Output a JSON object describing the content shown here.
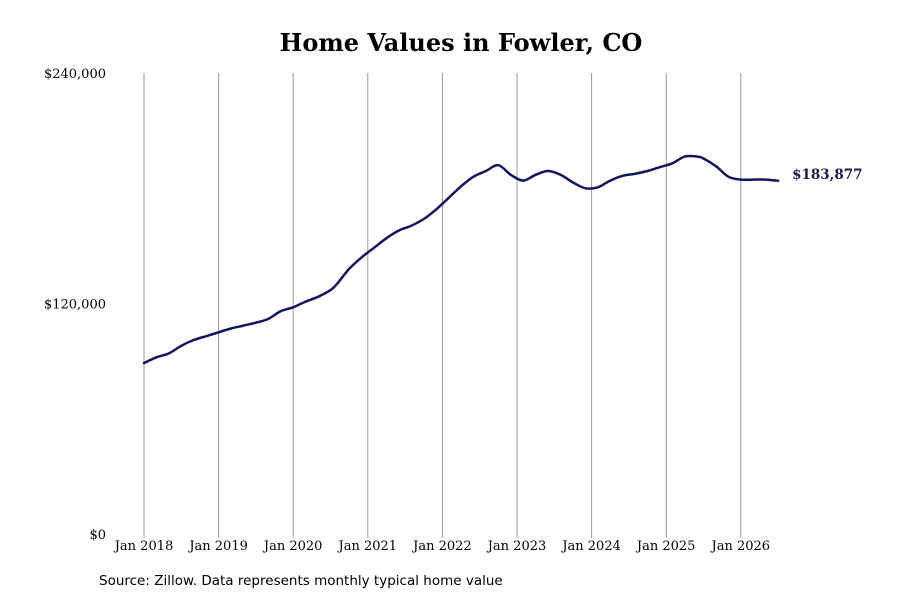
{
  "chart_data": {
    "type": "line",
    "title": "Home Values in Fowler, CO",
    "xlabel": "",
    "ylabel": "",
    "ylim": [
      0,
      240000
    ],
    "y_ticks": [
      {
        "value": 0,
        "label": "$0"
      },
      {
        "value": 120000,
        "label": "$120,000"
      },
      {
        "value": 240000,
        "label": "$240,000"
      }
    ],
    "x_ticks": [
      {
        "value": "2018-01",
        "label": "Jan 2018"
      },
      {
        "value": "2019-01",
        "label": "Jan 2019"
      },
      {
        "value": "2020-01",
        "label": "Jan 2020"
      },
      {
        "value": "2021-01",
        "label": "Jan 2021"
      },
      {
        "value": "2022-01",
        "label": "Jan 2022"
      },
      {
        "value": "2023-01",
        "label": "Jan 2023"
      },
      {
        "value": "2024-01",
        "label": "Jan 2024"
      },
      {
        "value": "2025-01",
        "label": "Jan 2025"
      },
      {
        "value": "2026-01",
        "label": "Jan 2026"
      }
    ],
    "grid": {
      "vertical": true,
      "horizontal": false
    },
    "line_color": "#14145e",
    "grid_color": "#999999",
    "series": [
      {
        "end_label": "$183,877",
        "points": [
          [
            "2018-01",
            89000
          ],
          [
            "2018-03",
            92000
          ],
          [
            "2018-05",
            94000
          ],
          [
            "2018-07",
            98000
          ],
          [
            "2018-09",
            101000
          ],
          [
            "2018-11",
            103000
          ],
          [
            "2019-01",
            105000
          ],
          [
            "2019-03",
            107000
          ],
          [
            "2019-05",
            108500
          ],
          [
            "2019-07",
            110000
          ],
          [
            "2019-09",
            112000
          ],
          [
            "2019-11",
            116000
          ],
          [
            "2020-01",
            118000
          ],
          [
            "2020-03",
            121000
          ],
          [
            "2020-05",
            123500
          ],
          [
            "2020-07",
            127000
          ],
          [
            "2020-08",
            130000
          ],
          [
            "2020-10",
            138000
          ],
          [
            "2020-12",
            144000
          ],
          [
            "2021-02",
            149000
          ],
          [
            "2021-04",
            154000
          ],
          [
            "2021-06",
            158000
          ],
          [
            "2021-08",
            160500
          ],
          [
            "2021-10",
            164000
          ],
          [
            "2021-12",
            169000
          ],
          [
            "2022-02",
            175000
          ],
          [
            "2022-04",
            181000
          ],
          [
            "2022-06",
            186000
          ],
          [
            "2022-08",
            189000
          ],
          [
            "2022-10",
            192000
          ],
          [
            "2022-12",
            187000
          ],
          [
            "2023-02",
            184000
          ],
          [
            "2023-04",
            187000
          ],
          [
            "2023-06",
            189000
          ],
          [
            "2023-08",
            187000
          ],
          [
            "2023-10",
            183000
          ],
          [
            "2023-12",
            180000
          ],
          [
            "2024-02",
            180500
          ],
          [
            "2024-04",
            184000
          ],
          [
            "2024-06",
            186500
          ],
          [
            "2024-08",
            187500
          ],
          [
            "2024-10",
            189000
          ],
          [
            "2024-12",
            191000
          ],
          [
            "2025-02",
            193000
          ],
          [
            "2025-04",
            196500
          ],
          [
            "2025-06",
            196500
          ],
          [
            "2025-07",
            195500
          ],
          [
            "2025-09",
            191500
          ],
          [
            "2025-11",
            186000
          ],
          [
            "2026-01",
            184500
          ],
          [
            "2026-03",
            184500
          ],
          [
            "2026-05",
            184500
          ],
          [
            "2026-07",
            183877
          ]
        ]
      }
    ]
  },
  "source": "Source: Zillow. Data represents monthly typical home value"
}
